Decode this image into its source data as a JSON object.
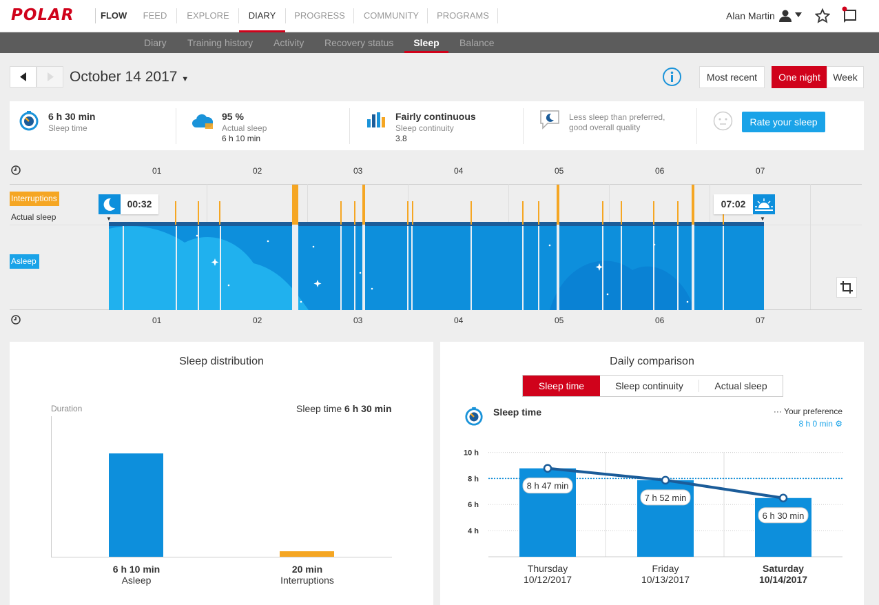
{
  "brand": {
    "logo": "POLAR",
    "app": "FLOW"
  },
  "nav": [
    "FEED",
    "EXPLORE",
    "DIARY",
    "PROGRESS",
    "COMMUNITY",
    "PROGRAMS"
  ],
  "user": {
    "name": "Alan Martin"
  },
  "subnav": [
    "Diary",
    "Training history",
    "Activity",
    "Recovery status",
    "Sleep",
    "Balance"
  ],
  "date": "October 14 2017",
  "view_buttons": {
    "recent": "Most recent",
    "night": "One night",
    "week": "Week"
  },
  "summary": {
    "sleep_time": {
      "value": "6 h 30 min",
      "label": "Sleep time"
    },
    "actual_sleep": {
      "value": "95 %",
      "label": "Actual sleep",
      "sub": "6 h 10 min"
    },
    "continuity": {
      "value": "Fairly continuous",
      "label": "Sleep continuity",
      "sub": "3.8"
    },
    "feedback": {
      "line1": "Less sleep than preferred,",
      "line2": "good overall quality"
    },
    "rate_button": "Rate your sleep"
  },
  "timeline": {
    "hours": [
      "01",
      "02",
      "03",
      "04",
      "05",
      "06",
      "07"
    ],
    "legend_interruptions": "Interruptions",
    "legend_actual": "Actual sleep",
    "legend_asleep": "Asleep",
    "start": "00:32",
    "end": "07:02"
  },
  "distribution": {
    "title": "Sleep distribution",
    "axis_label": "Duration",
    "total_label": "Sleep time",
    "total_value": "6 h 30 min",
    "asleep_value": "6 h 10 min",
    "asleep_label": "Asleep",
    "interrupt_value": "20 min",
    "interrupt_label": "Interruptions"
  },
  "comparison": {
    "title": "Daily comparison",
    "tabs": [
      "Sleep time",
      "Sleep continuity",
      "Actual sleep"
    ],
    "metric": "Sleep time",
    "pref_label": "Your preference",
    "pref_value": "8 h 0 min",
    "yticks": [
      "10 h",
      "8 h",
      "6 h",
      "4 h"
    ]
  },
  "chart_data": [
    {
      "type": "bar",
      "title": "Sleep distribution",
      "ylabel": "Duration",
      "categories": [
        "Asleep",
        "Interruptions"
      ],
      "values": [
        370,
        20
      ],
      "unit": "min",
      "colors": [
        "#0d8fdc",
        "#f5a623"
      ]
    },
    {
      "type": "bar",
      "title": "Daily comparison",
      "categories": [
        "Thursday 10/12/2017",
        "Friday 10/13/2017",
        "Saturday 10/14/2017"
      ],
      "days": [
        "Thursday",
        "Friday",
        "Saturday"
      ],
      "dates": [
        "10/12/2017",
        "10/13/2017",
        "10/14/2017"
      ],
      "values": [
        8.78,
        7.87,
        6.5
      ],
      "value_labels": [
        "8 h 47 min",
        "7 h 52 min",
        "6 h 30 min"
      ],
      "unit": "h",
      "ylim": [
        3,
        11
      ],
      "reference_line": 8,
      "colors": {
        "bar": "#0d8fdc",
        "line": "#1b5c99",
        "reference": "#0d8fdc"
      }
    }
  ]
}
